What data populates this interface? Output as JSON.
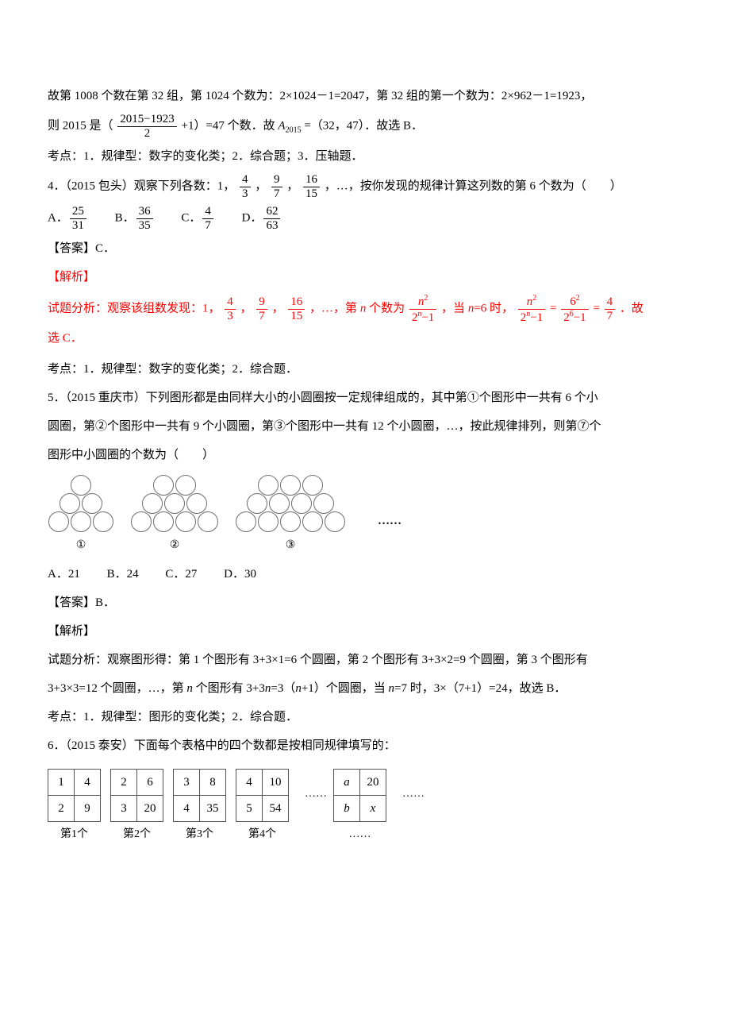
{
  "p1": {
    "a": "故第 1008 个数在第 32 组，第 1024 个数为：2×1024－1=2047，第 32 组的第一个数为：2×962－1=1923，",
    "b_pre": "则 2015 是（",
    "b_frac_num": "2015−1923",
    "b_frac_den": "2",
    "b_mid": "+1）=47 个数．故 ",
    "b_A": "A",
    "b_sub": "2015",
    "b_post": "=（32，47）．故选 B．",
    "kd": "考点：1．规律型：数字的变化类；2．综合题；3．压轴题．"
  },
  "q4": {
    "stem_a": "4．（2015 包头）观察下列各数：1，",
    "f1n": "4",
    "f1d": "3",
    "f2n": "9",
    "f2d": "7",
    "f3n": "16",
    "f3d": "15",
    "stem_b": "，…，按你发现的规律计算这列数的第 6 个数为（　　）",
    "optA_n": "25",
    "optA_d": "31",
    "optB_n": "36",
    "optB_d": "35",
    "optC_n": "4",
    "optC_d": "7",
    "optD_n": "62",
    "optD_d": "63",
    "ans": "【答案】C．",
    "jiexi": "【解析】",
    "ana_a": "试题分析：观察该组数发现：1，",
    "ana_b": "，…，第 ",
    "ana_n": "n",
    "ana_c": " 个数为",
    "g1n": "n",
    "g1d_a": "2",
    "g1d_b": "n",
    "g1d_c": "−1",
    "ana_d": "，当 ",
    "ana_e": "=6 时，",
    "eq_mid": "=",
    "g2n": "6",
    "g2d_a": "2",
    "g2d_b": "6",
    "g2d_c": "−1",
    "g3n": "4",
    "g3d": "7",
    "ana_f": "．故",
    "ana_g": "选 C．",
    "kd": "考点：1．规律型：数字的变化类；2．综合题．"
  },
  "q5": {
    "stem1": "5．（2015 重庆市）下列图形都是由同样大小的小圆圈按一定规律组成的，其中第①个图形中一共有 6 个小",
    "stem2": "圆圈，第②个图形中一共有 9 个小圆圈，第③个图形中一共有 12 个小圆圈，…，按此规律排列，则第⑦个",
    "stem3": "图形中小圆圈的个数为（　　）",
    "fig": {
      "circle_size": 24,
      "border_color": "#6f6f6f",
      "groups": [
        {
          "rows": [
            1,
            2,
            3
          ],
          "label": "①"
        },
        {
          "rows": [
            2,
            3,
            4
          ],
          "label": "②"
        },
        {
          "rows": [
            3,
            4,
            5
          ],
          "label": "③"
        }
      ],
      "dots": "……"
    },
    "optA": "A．21",
    "optB": "B．24",
    "optC": "C．27",
    "optD": "D．30",
    "ans": "【答案】B．",
    "jiexi": "【解析】",
    "ana1": "试题分析：观察图形得：第 1 个图形有 3+3×1=6 个圆圈，第 2 个图形有 3+3×2=9 个圆圈，第 3 个图形有",
    "ana2_a": "3+3×3=12 个圆圈，…，第 ",
    "ana2_n": "n",
    "ana2_b": " 个图形有 3+3",
    "ana2_c": "=3（",
    "ana2_d": "+1）个圆圈，当 ",
    "ana2_e": "=7 时，3×（7+1）=24，故选 B．",
    "kd": "考点：1．规律型：图形的变化类；2．综合题．"
  },
  "q6": {
    "stem": "6．（2015 泰安）下面每个表格中的四个数都是按相同规律填写的：",
    "tables": [
      {
        "r1": [
          "1",
          "4"
        ],
        "r2": [
          "2",
          "9"
        ],
        "label": "第1个"
      },
      {
        "r1": [
          "2",
          "6"
        ],
        "r2": [
          "3",
          "20"
        ],
        "label": "第2个"
      },
      {
        "r1": [
          "3",
          "8"
        ],
        "r2": [
          "4",
          "35"
        ],
        "label": "第3个"
      },
      {
        "r1": [
          "4",
          "10"
        ],
        "r2": [
          "5",
          "54"
        ],
        "label": "第4个"
      }
    ],
    "last": {
      "r1": [
        "a",
        "20"
      ],
      "r2": [
        "b",
        "x"
      ]
    },
    "ell": "……",
    "ell2": "……"
  },
  "colors": {
    "text": "#000000",
    "red": "#ff0000",
    "circle_border": "#6f6f6f",
    "table_border": "#555555",
    "bg": "#ffffff"
  }
}
